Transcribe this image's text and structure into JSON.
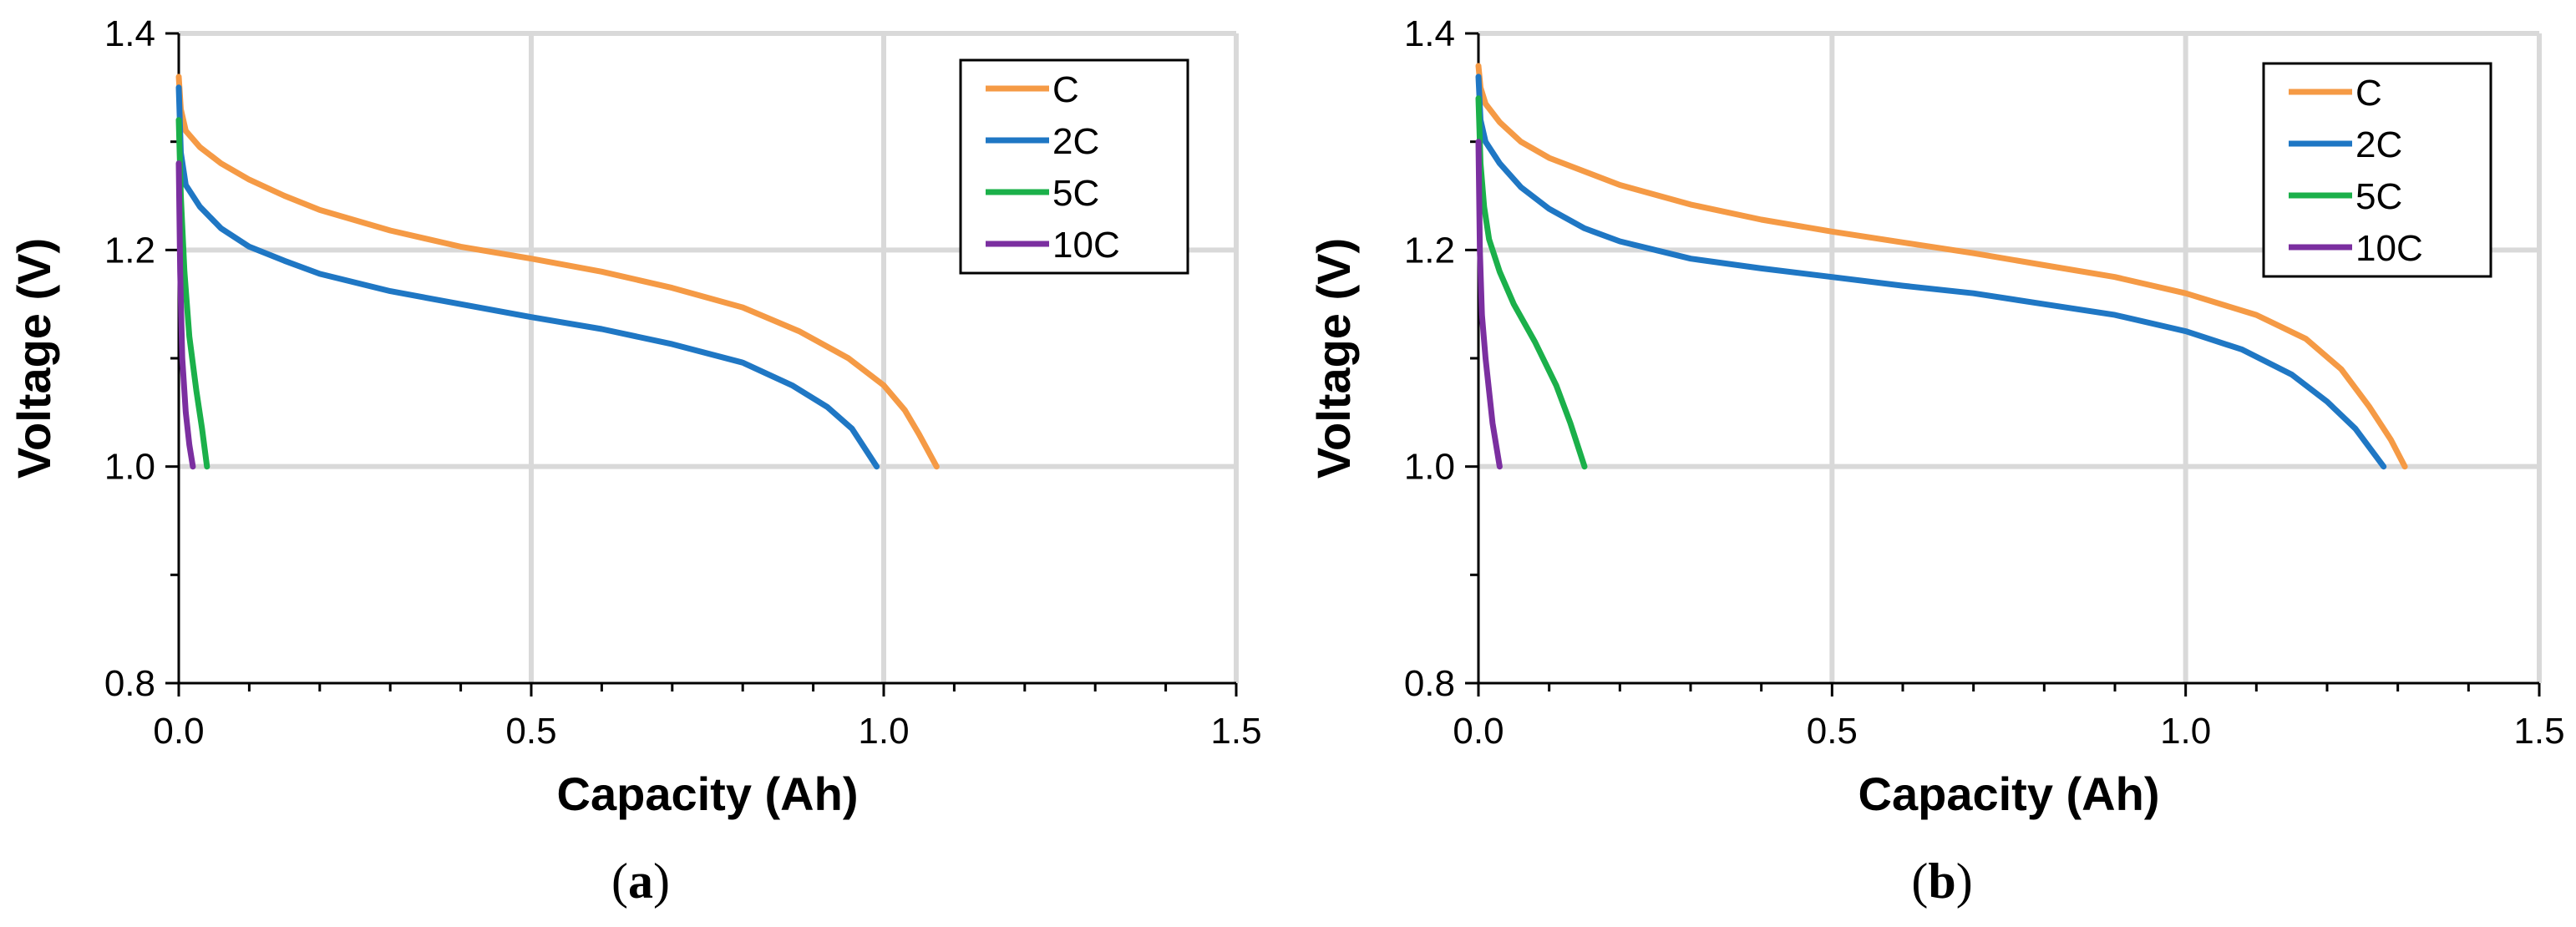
{
  "colors": {
    "C": "#F59A45",
    "2C": "#1F77C4",
    "5C": "#1BB04A",
    "10C": "#7B2FA0",
    "grid": "#D9D9D9",
    "axis": "#000000"
  },
  "chart_data": [
    {
      "type": "line",
      "panel_label": "a",
      "xlabel": "Capacity (Ah)",
      "ylabel": "Voltage (V)",
      "xlim": [
        0,
        1.5
      ],
      "ylim": [
        0.8,
        1.4
      ],
      "xticks": [
        0,
        0.5,
        1.0,
        1.5
      ],
      "xtick_labels": [
        "0.0",
        "0.5",
        "1.0",
        "1.5"
      ],
      "yticks": [
        0.8,
        1.0,
        1.2,
        1.4
      ],
      "ytick_labels": [
        "0.8",
        "1.0",
        "1.2",
        "1.4"
      ],
      "grid": true,
      "legend_position": "top-right",
      "series": [
        {
          "name": "C",
          "color_key": "C",
          "points": [
            [
              0,
              1.36
            ],
            [
              0.003,
              1.33
            ],
            [
              0.01,
              1.31
            ],
            [
              0.03,
              1.295
            ],
            [
              0.06,
              1.28
            ],
            [
              0.1,
              1.265
            ],
            [
              0.15,
              1.25
            ],
            [
              0.2,
              1.237
            ],
            [
              0.3,
              1.218
            ],
            [
              0.4,
              1.203
            ],
            [
              0.5,
              1.192
            ],
            [
              0.6,
              1.18
            ],
            [
              0.7,
              1.165
            ],
            [
              0.8,
              1.147
            ],
            [
              0.88,
              1.125
            ],
            [
              0.95,
              1.1
            ],
            [
              1.0,
              1.075
            ],
            [
              1.03,
              1.052
            ],
            [
              1.05,
              1.03
            ],
            [
              1.075,
              1.0
            ]
          ]
        },
        {
          "name": "2C",
          "color_key": "2C",
          "points": [
            [
              0,
              1.35
            ],
            [
              0.003,
              1.29
            ],
            [
              0.01,
              1.26
            ],
            [
              0.03,
              1.24
            ],
            [
              0.06,
              1.22
            ],
            [
              0.1,
              1.203
            ],
            [
              0.15,
              1.19
            ],
            [
              0.2,
              1.178
            ],
            [
              0.3,
              1.162
            ],
            [
              0.4,
              1.15
            ],
            [
              0.5,
              1.138
            ],
            [
              0.6,
              1.127
            ],
            [
              0.7,
              1.113
            ],
            [
              0.8,
              1.096
            ],
            [
              0.87,
              1.075
            ],
            [
              0.92,
              1.055
            ],
            [
              0.955,
              1.035
            ],
            [
              0.99,
              1.0
            ]
          ]
        },
        {
          "name": "5C",
          "color_key": "5C",
          "points": [
            [
              0,
              1.32
            ],
            [
              0.003,
              1.25
            ],
            [
              0.008,
              1.18
            ],
            [
              0.015,
              1.12
            ],
            [
              0.025,
              1.07
            ],
            [
              0.033,
              1.035
            ],
            [
              0.04,
              1.0
            ]
          ]
        },
        {
          "name": "10C",
          "color_key": "10C",
          "points": [
            [
              0,
              1.28
            ],
            [
              0.002,
              1.18
            ],
            [
              0.005,
              1.1
            ],
            [
              0.01,
              1.05
            ],
            [
              0.015,
              1.02
            ],
            [
              0.02,
              1.0
            ]
          ]
        }
      ]
    },
    {
      "type": "line",
      "panel_label": "b",
      "xlabel": "Capacity (Ah)",
      "ylabel": "Voltage (V)",
      "xlim": [
        0,
        1.5
      ],
      "ylim": [
        0.8,
        1.4
      ],
      "xticks": [
        0,
        0.5,
        1.0,
        1.5
      ],
      "xtick_labels": [
        "0.0",
        "0.5",
        "1.0",
        "1.5"
      ],
      "yticks": [
        0.8,
        1.0,
        1.2,
        1.4
      ],
      "ytick_labels": [
        "0.8",
        "1.0",
        "1.2",
        "1.4"
      ],
      "grid": true,
      "legend_position": "top-right",
      "series": [
        {
          "name": "C",
          "color_key": "C",
          "points": [
            [
              0,
              1.37
            ],
            [
              0.003,
              1.35
            ],
            [
              0.01,
              1.335
            ],
            [
              0.03,
              1.318
            ],
            [
              0.06,
              1.3
            ],
            [
              0.1,
              1.285
            ],
            [
              0.2,
              1.26
            ],
            [
              0.3,
              1.242
            ],
            [
              0.4,
              1.228
            ],
            [
              0.5,
              1.217
            ],
            [
              0.6,
              1.207
            ],
            [
              0.7,
              1.197
            ],
            [
              0.8,
              1.186
            ],
            [
              0.9,
              1.175
            ],
            [
              1.0,
              1.16
            ],
            [
              1.1,
              1.14
            ],
            [
              1.17,
              1.118
            ],
            [
              1.22,
              1.09
            ],
            [
              1.26,
              1.055
            ],
            [
              1.29,
              1.025
            ],
            [
              1.31,
              1.0
            ]
          ]
        },
        {
          "name": "2C",
          "color_key": "2C",
          "points": [
            [
              0,
              1.36
            ],
            [
              0.003,
              1.32
            ],
            [
              0.01,
              1.3
            ],
            [
              0.03,
              1.28
            ],
            [
              0.06,
              1.258
            ],
            [
              0.1,
              1.238
            ],
            [
              0.15,
              1.22
            ],
            [
              0.2,
              1.208
            ],
            [
              0.3,
              1.192
            ],
            [
              0.4,
              1.183
            ],
            [
              0.5,
              1.175
            ],
            [
              0.6,
              1.167
            ],
            [
              0.7,
              1.16
            ],
            [
              0.8,
              1.15
            ],
            [
              0.9,
              1.14
            ],
            [
              1.0,
              1.125
            ],
            [
              1.08,
              1.108
            ],
            [
              1.15,
              1.085
            ],
            [
              1.2,
              1.06
            ],
            [
              1.24,
              1.035
            ],
            [
              1.28,
              1.0
            ]
          ]
        },
        {
          "name": "5C",
          "color_key": "5C",
          "points": [
            [
              0,
              1.34
            ],
            [
              0.003,
              1.28
            ],
            [
              0.008,
              1.24
            ],
            [
              0.015,
              1.21
            ],
            [
              0.03,
              1.18
            ],
            [
              0.05,
              1.15
            ],
            [
              0.08,
              1.115
            ],
            [
              0.11,
              1.075
            ],
            [
              0.13,
              1.04
            ],
            [
              0.15,
              1.0
            ]
          ]
        },
        {
          "name": "10C",
          "color_key": "10C",
          "points": [
            [
              0,
              1.3
            ],
            [
              0.002,
              1.2
            ],
            [
              0.005,
              1.14
            ],
            [
              0.01,
              1.1
            ],
            [
              0.02,
              1.04
            ],
            [
              0.03,
              1.0
            ]
          ]
        }
      ]
    }
  ]
}
